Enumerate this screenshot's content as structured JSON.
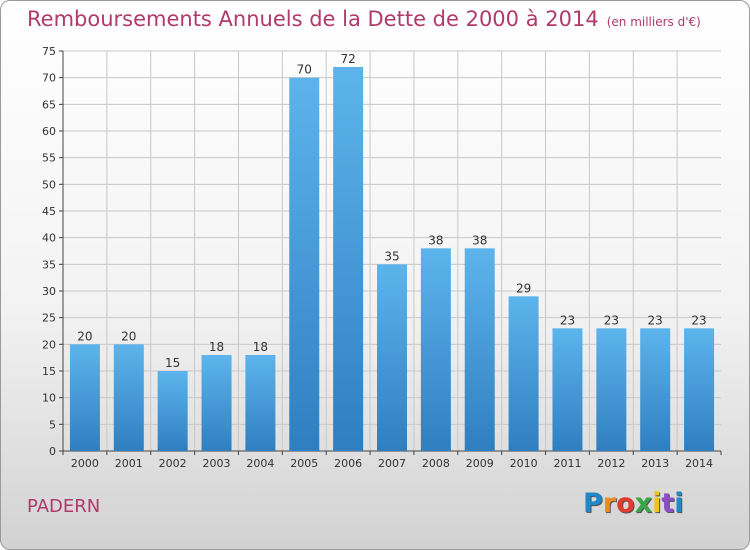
{
  "header": {
    "title": "Remboursements Annuels de la Dette de 2000 à 2014",
    "unit": "(en milliers d'€)"
  },
  "footer": {
    "commune": "PADERN",
    "logo_letters": [
      "P",
      "r",
      "o",
      "x",
      "i",
      "t",
      "i"
    ],
    "logo_colors": [
      "#1e88c8",
      "#f08c1e",
      "#e23b2c",
      "#3aa64a",
      "#f3c21a",
      "#8a4fc4",
      "#1e88c8"
    ]
  },
  "colors": {
    "bar_top": "#5db4ec",
    "bar_bottom": "#2f7fc0",
    "title": "#b03a6a",
    "grid": "#c8c8c8"
  },
  "chart_data": {
    "type": "bar",
    "categories": [
      "2000",
      "2001",
      "2002",
      "2003",
      "2004",
      "2005",
      "2006",
      "2007",
      "2008",
      "2009",
      "2010",
      "2011",
      "2012",
      "2013",
      "2014"
    ],
    "values": [
      20,
      20,
      15,
      18,
      18,
      70,
      72,
      35,
      38,
      38,
      29,
      23,
      23,
      23,
      23
    ],
    "title": "Remboursements Annuels de la Dette de 2000 à 2014",
    "ylim": [
      0,
      75
    ],
    "yticks": [
      0,
      5,
      10,
      15,
      20,
      25,
      30,
      35,
      40,
      45,
      50,
      55,
      60,
      65,
      70,
      75
    ],
    "grid": true
  }
}
